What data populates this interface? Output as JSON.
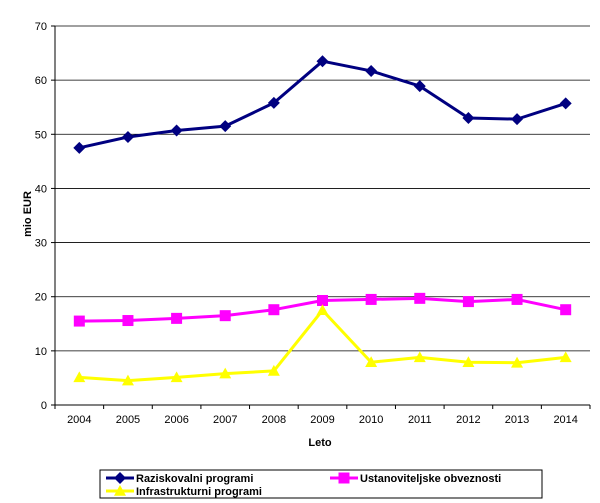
{
  "chart_data": {
    "type": "line",
    "title": "",
    "xlabel": "Leto",
    "ylabel": "mio EUR",
    "x": [
      "2004",
      "2005",
      "2006",
      "2007",
      "2008",
      "2009",
      "2010",
      "2011",
      "2012",
      "2013",
      "2014"
    ],
    "ylim": [
      0,
      70
    ],
    "yticks": [
      0,
      10,
      20,
      30,
      40,
      50,
      60,
      70
    ],
    "grid": true,
    "legend_position": "bottom",
    "series": [
      {
        "name": "Raziskovalni programi",
        "color": "#000080",
        "marker": "diamond",
        "values": [
          47.5,
          49.5,
          50.7,
          51.5,
          55.8,
          63.5,
          61.7,
          58.9,
          53.0,
          52.8,
          55.7
        ]
      },
      {
        "name": "Ustanoviteljske obveznosti",
        "color": "#FF00FF",
        "marker": "square",
        "values": [
          15.5,
          15.6,
          16.0,
          16.5,
          17.6,
          19.3,
          19.5,
          19.7,
          19.1,
          19.5,
          17.6
        ]
      },
      {
        "name": "Infrastrukturni programi",
        "color": "#FFFF00",
        "marker": "triangle",
        "values": [
          5.1,
          4.5,
          5.1,
          5.8,
          6.3,
          17.5,
          7.9,
          8.8,
          7.9,
          7.8,
          8.8
        ]
      }
    ]
  }
}
